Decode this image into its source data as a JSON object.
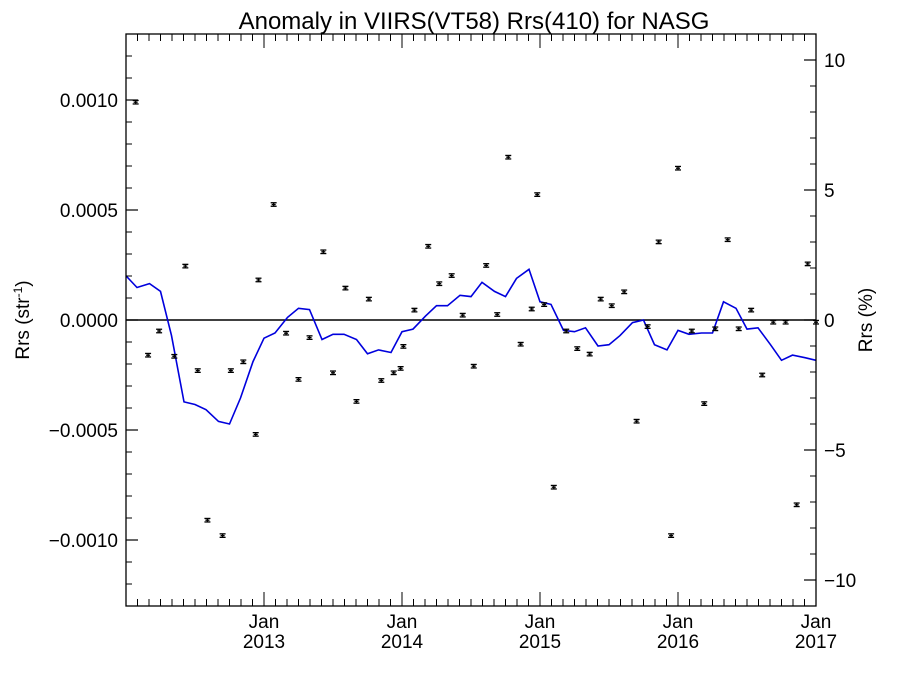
{
  "chart_data": {
    "type": "scatter",
    "title": "Anomaly in VIIRS(VT58) Rrs(410) for NASG",
    "ylabel_left": {
      "base": "Rrs (str",
      "sup": "-1",
      "tail": ")"
    },
    "ylabel_right": "Rrs (%)",
    "x_unit": "decimal year",
    "xlim": [
      2012.0,
      2017.0
    ],
    "ylim_left": [
      -0.0013,
      0.0013
    ],
    "ylim_right": [
      -11.0,
      11.0
    ],
    "x_ticks": [
      {
        "x": 2013.0,
        "month": "Jan",
        "year": "2013"
      },
      {
        "x": 2014.0,
        "month": "Jan",
        "year": "2014"
      },
      {
        "x": 2015.0,
        "month": "Jan",
        "year": "2015"
      },
      {
        "x": 2016.0,
        "month": "Jan",
        "year": "2016"
      },
      {
        "x": 2017.0,
        "month": "Jan",
        "year": "2017"
      }
    ],
    "y_ticks_left": [
      {
        "v": 0.001,
        "label": "0.0010"
      },
      {
        "v": 0.0005,
        "label": "0.0005"
      },
      {
        "v": 0.0,
        "label": "0.0000"
      },
      {
        "v": -0.0005,
        "label": "−0.0005"
      },
      {
        "v": -0.001,
        "label": "−0.0010"
      }
    ],
    "y_ticks_right": [
      {
        "v": 10,
        "label": "10"
      },
      {
        "v": 5,
        "label": "5"
      },
      {
        "v": 0,
        "label": "0"
      },
      {
        "v": -5,
        "label": "−5"
      },
      {
        "v": -10,
        "label": "−10"
      }
    ],
    "zero_line": true,
    "colors": {
      "points": "#000000",
      "line": "#0000dd",
      "axes": "#000000"
    },
    "series": [
      {
        "kind": "points_with_errorbars",
        "axis": "left",
        "error": 8e-06,
        "x": [
          2012.07,
          2012.16,
          2012.24,
          2012.35,
          2012.43,
          2012.52,
          2012.59,
          2012.7,
          2012.76,
          2012.85,
          2012.94,
          2012.96,
          2013.07,
          2013.16,
          2013.25,
          2013.33,
          2013.43,
          2013.5,
          2013.59,
          2013.67,
          2013.76,
          2013.85,
          2013.94,
          2013.99,
          2014.01,
          2014.09,
          2014.19,
          2014.27,
          2014.36,
          2014.44,
          2014.52,
          2014.61,
          2014.69,
          2014.77,
          2014.86,
          2014.94,
          2014.98,
          2015.03,
          2015.1,
          2015.19,
          2015.27,
          2015.36,
          2015.44,
          2015.52,
          2015.61,
          2015.7,
          2015.78,
          2015.86,
          2015.95,
          2016.0,
          2016.1,
          2016.19,
          2016.27,
          2016.36,
          2016.44,
          2016.53,
          2016.61,
          2016.69,
          2016.78,
          2016.86,
          2016.94,
          2017.0
        ],
        "y": [
          0.00099,
          -0.00016,
          -5e-05,
          -0.000165,
          0.000245,
          -0.00023,
          -0.00091,
          -0.00098,
          -0.00023,
          -0.00019,
          -0.00052,
          0.000182,
          0.000525,
          -6e-05,
          -0.00027,
          -8e-05,
          0.00031,
          -0.00024,
          0.000145,
          -0.00037,
          9.5e-05,
          -0.000275,
          -0.00024,
          -0.00022,
          -0.00012,
          4.5e-05,
          0.000335,
          0.000165,
          0.000202,
          2.2e-05,
          -0.00021,
          0.000248,
          2.5e-05,
          0.00074,
          -0.00011,
          5e-05,
          0.00057,
          7e-05,
          -0.00076,
          -5e-05,
          -0.00013,
          -0.000155,
          9.5e-05,
          6.5e-05,
          0.000128,
          -0.00046,
          -3e-05,
          0.000355,
          -0.00098,
          0.00069,
          -5e-05,
          -0.00038,
          -4e-05,
          0.000365,
          -4e-05,
          4.5e-05,
          -0.00025,
          -1e-05,
          -1e-05,
          -0.00084,
          0.000255,
          -1e-05
        ]
      },
      {
        "kind": "line",
        "axis": "right",
        "x": [
          2012.0,
          2012.08,
          2012.17,
          2012.25,
          2012.33,
          2012.42,
          2012.5,
          2012.58,
          2012.67,
          2012.75,
          2012.83,
          2012.92,
          2013.0,
          2013.08,
          2013.17,
          2013.25,
          2013.33,
          2013.42,
          2013.5,
          2013.58,
          2013.67,
          2013.75,
          2013.83,
          2013.92,
          2014.0,
          2014.08,
          2014.17,
          2014.25,
          2014.33,
          2014.42,
          2014.5,
          2014.58,
          2014.67,
          2014.75,
          2014.83,
          2014.92,
          2015.0,
          2015.08,
          2015.17,
          2015.25,
          2015.33,
          2015.42,
          2015.5,
          2015.58,
          2015.67,
          2015.75,
          2015.83,
          2015.92,
          2016.0,
          2016.08,
          2016.17,
          2016.25,
          2016.33,
          2016.42,
          2016.5,
          2016.58,
          2016.67,
          2016.75,
          2016.83,
          2016.92,
          2017.0
        ],
        "y": [
          1.7,
          1.25,
          1.4,
          1.1,
          -0.6,
          -3.15,
          -3.25,
          -3.45,
          -3.9,
          -4.0,
          -3.0,
          -1.6,
          -0.7,
          -0.5,
          0.1,
          0.45,
          0.4,
          -0.75,
          -0.55,
          -0.55,
          -0.75,
          -1.3,
          -1.15,
          -1.25,
          -0.45,
          -0.35,
          0.15,
          0.55,
          0.55,
          0.95,
          0.9,
          1.45,
          1.1,
          0.9,
          1.6,
          1.95,
          0.7,
          0.6,
          -0.4,
          -0.45,
          -0.3,
          -1.0,
          -0.95,
          -0.6,
          -0.1,
          0.0,
          -0.95,
          -1.15,
          -0.4,
          -0.55,
          -0.5,
          -0.5,
          0.7,
          0.45,
          -0.35,
          -0.3,
          -0.95,
          -1.55,
          -1.35,
          -1.45,
          -1.55
        ]
      }
    ]
  }
}
